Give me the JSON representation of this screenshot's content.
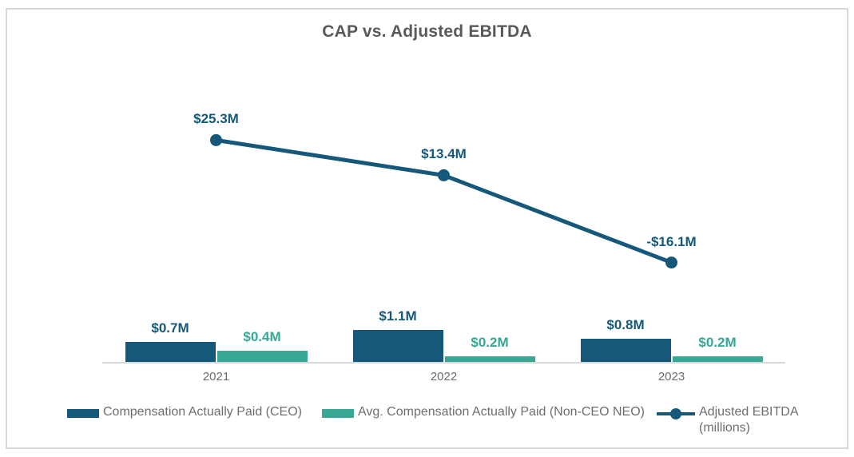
{
  "chart_data": {
    "type": "combo",
    "title": "CAP vs. Adjusted EBITDA",
    "categories": [
      "2021",
      "2022",
      "2023"
    ],
    "series": [
      {
        "name": "Compensation Actually Paid (CEO)",
        "type": "bar",
        "values": [
          0.7,
          1.1,
          0.8
        ],
        "labels": [
          "$0.7M",
          "$1.1M",
          "$0.8M"
        ],
        "color": "#15587A"
      },
      {
        "name": "Avg. Compensation Actually Paid (Non-CEO NEO)",
        "type": "bar",
        "values": [
          0.4,
          0.2,
          0.2
        ],
        "labels": [
          "$0.4M",
          "$0.2M",
          "$0.2M"
        ],
        "color": "#38A795"
      },
      {
        "name": "Adjusted EBITDA (millions)",
        "type": "line",
        "values": [
          25.3,
          13.4,
          -16.1
        ],
        "labels": [
          "$25.3M",
          "$13.4M",
          "-$16.1M"
        ],
        "color": "#15587A"
      }
    ],
    "legend_position": "bottom",
    "grid": false,
    "axes": {
      "x_ticks": [
        "2021",
        "2022",
        "2023"
      ],
      "y_axis_visible": false
    }
  },
  "colors": {
    "title_text": "#595959",
    "axis_line": "#D9D9D9",
    "border": "#D9D9D9",
    "category_text": "#6B6B6B",
    "legend_text": "#6E6E6E"
  }
}
